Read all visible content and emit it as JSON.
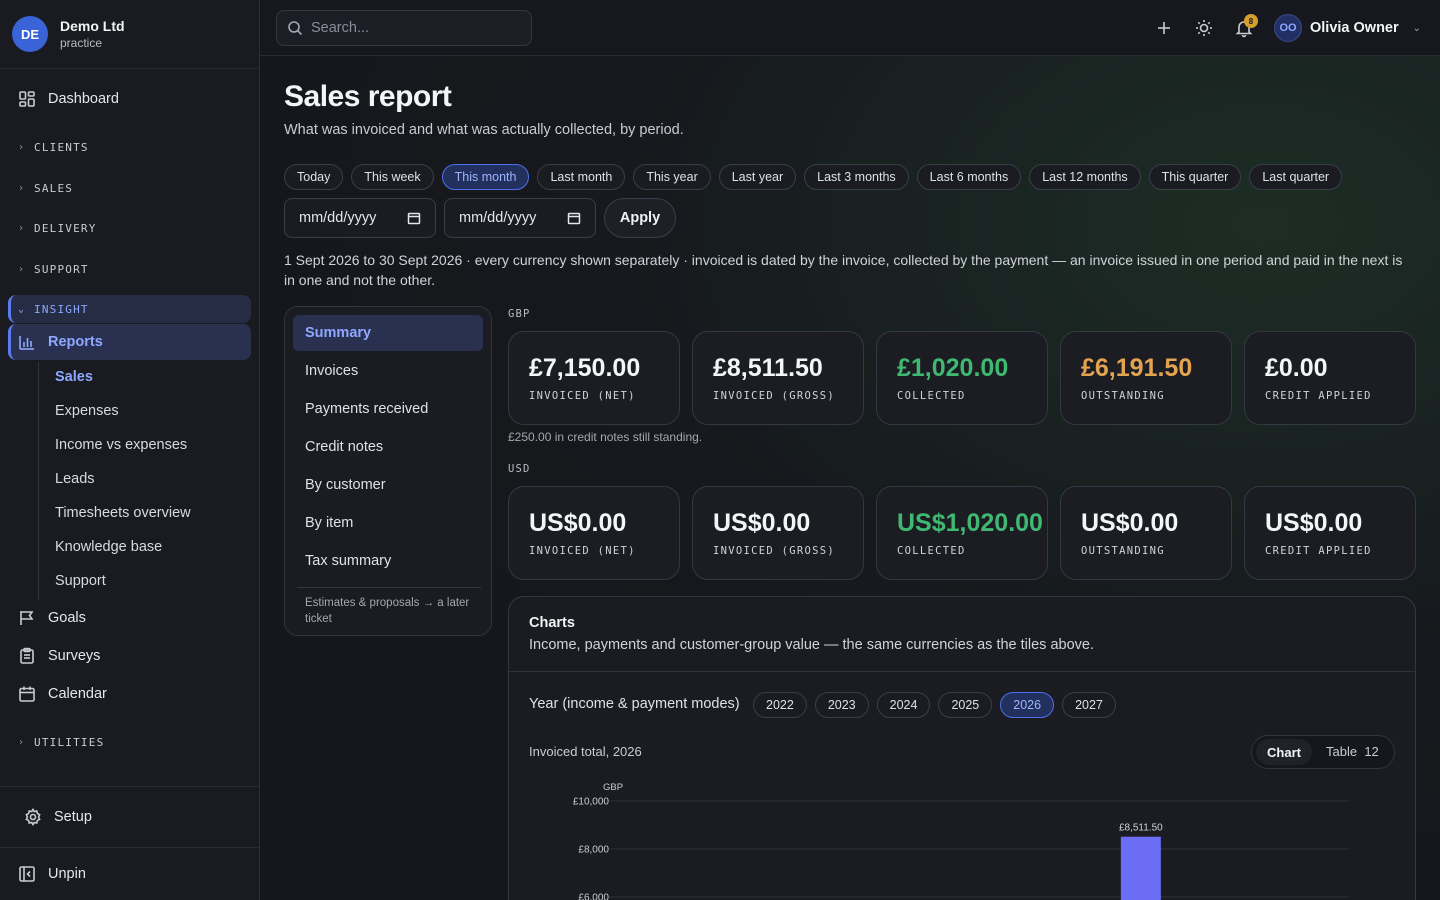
{
  "org": {
    "initials": "DE",
    "name": "Demo Ltd",
    "subtitle": "practice"
  },
  "sidebar": {
    "dashboard": "Dashboard",
    "groups": {
      "clients": "CLIENTS",
      "sales": "SALES",
      "delivery": "DELIVERY",
      "support": "SUPPORT",
      "insight": "INSIGHT",
      "utilities": "UTILITIES"
    },
    "reports": "Reports",
    "report_items": [
      "Sales",
      "Expenses",
      "Income vs expenses",
      "Leads",
      "Timesheets overview",
      "Knowledge base",
      "Support"
    ],
    "goals": "Goals",
    "surveys": "Surveys",
    "calendar": "Calendar",
    "setup": "Setup",
    "unpin": "Unpin"
  },
  "topbar": {
    "search_placeholder": "Search...",
    "notifications_count": "8",
    "user_initials": "OO",
    "user_name": "Olivia Owner"
  },
  "page": {
    "title": "Sales report",
    "subtitle": "What was invoiced and what was actually collected, by period.",
    "period_chips": [
      "Today",
      "This week",
      "This month",
      "Last month",
      "This year",
      "Last year",
      "Last 3 months",
      "Last 6 months",
      "Last 12 months",
      "This quarter",
      "Last quarter"
    ],
    "active_chip": "This month",
    "date_from_placeholder": "mm/dd/yyyy",
    "date_to_placeholder": "mm/dd/yyyy",
    "apply": "Apply",
    "range_note": "1 Sept 2026 to 30 Sept 2026 · every currency shown separately · invoiced is dated by the invoice, collected by the payment — an invoice issued in one period and paid in the next is in one and not the other."
  },
  "subnav": {
    "items": [
      "Summary",
      "Invoices",
      "Payments received",
      "Credit notes",
      "By customer",
      "By item",
      "Tax summary"
    ],
    "active": "Summary",
    "note": "Estimates & proposals → a later ticket"
  },
  "currencies": {
    "gbp": {
      "label": "GBP",
      "tiles": [
        {
          "value": "£7,150.00",
          "label": "INVOICED (NET)"
        },
        {
          "value": "£8,511.50",
          "label": "INVOICED (GROSS)"
        },
        {
          "value": "£1,020.00",
          "label": "COLLECTED"
        },
        {
          "value": "£6,191.50",
          "label": "OUTSTANDING"
        },
        {
          "value": "£0.00",
          "label": "CREDIT APPLIED"
        }
      ],
      "credit_note": "£250.00 in credit notes still standing."
    },
    "usd": {
      "label": "USD",
      "tiles": [
        {
          "value": "US$0.00",
          "label": "INVOICED (NET)"
        },
        {
          "value": "US$0.00",
          "label": "INVOICED (GROSS)"
        },
        {
          "value": "US$1,020.00",
          "label": "COLLECTED"
        },
        {
          "value": "US$0.00",
          "label": "OUTSTANDING"
        },
        {
          "value": "US$0.00",
          "label": "CREDIT APPLIED"
        }
      ]
    }
  },
  "charts_panel": {
    "title": "Charts",
    "subtitle": "Income, payments and customer-group value — the same currencies as the tiles above.",
    "year_label": "Year (income & payment modes)",
    "years": [
      "2022",
      "2023",
      "2024",
      "2025",
      "2026",
      "2027"
    ],
    "active_year": "2026",
    "caption": "Invoiced total, 2026",
    "toggle_chart": "Chart",
    "toggle_table": "Table",
    "table_count": "12"
  },
  "colors": {
    "accent": "#5b7cf0",
    "collected": "#3fb871",
    "outstanding": "#e3a450",
    "bar": "#6b6ef5"
  },
  "chart_data": {
    "type": "bar",
    "series": [
      {
        "name": "GBP",
        "values": [
          0,
          0,
          0,
          0,
          0,
          0,
          0,
          0,
          8511.5,
          0,
          0,
          0
        ]
      }
    ],
    "categories_count": 12,
    "ylim": [
      0,
      10000
    ],
    "yticks": [
      "£10,000",
      "£8,000",
      "£6,000"
    ],
    "ytick_values": [
      10000,
      8000,
      6000
    ],
    "data_labels": [
      "£8,511.50"
    ],
    "grid": true
  }
}
